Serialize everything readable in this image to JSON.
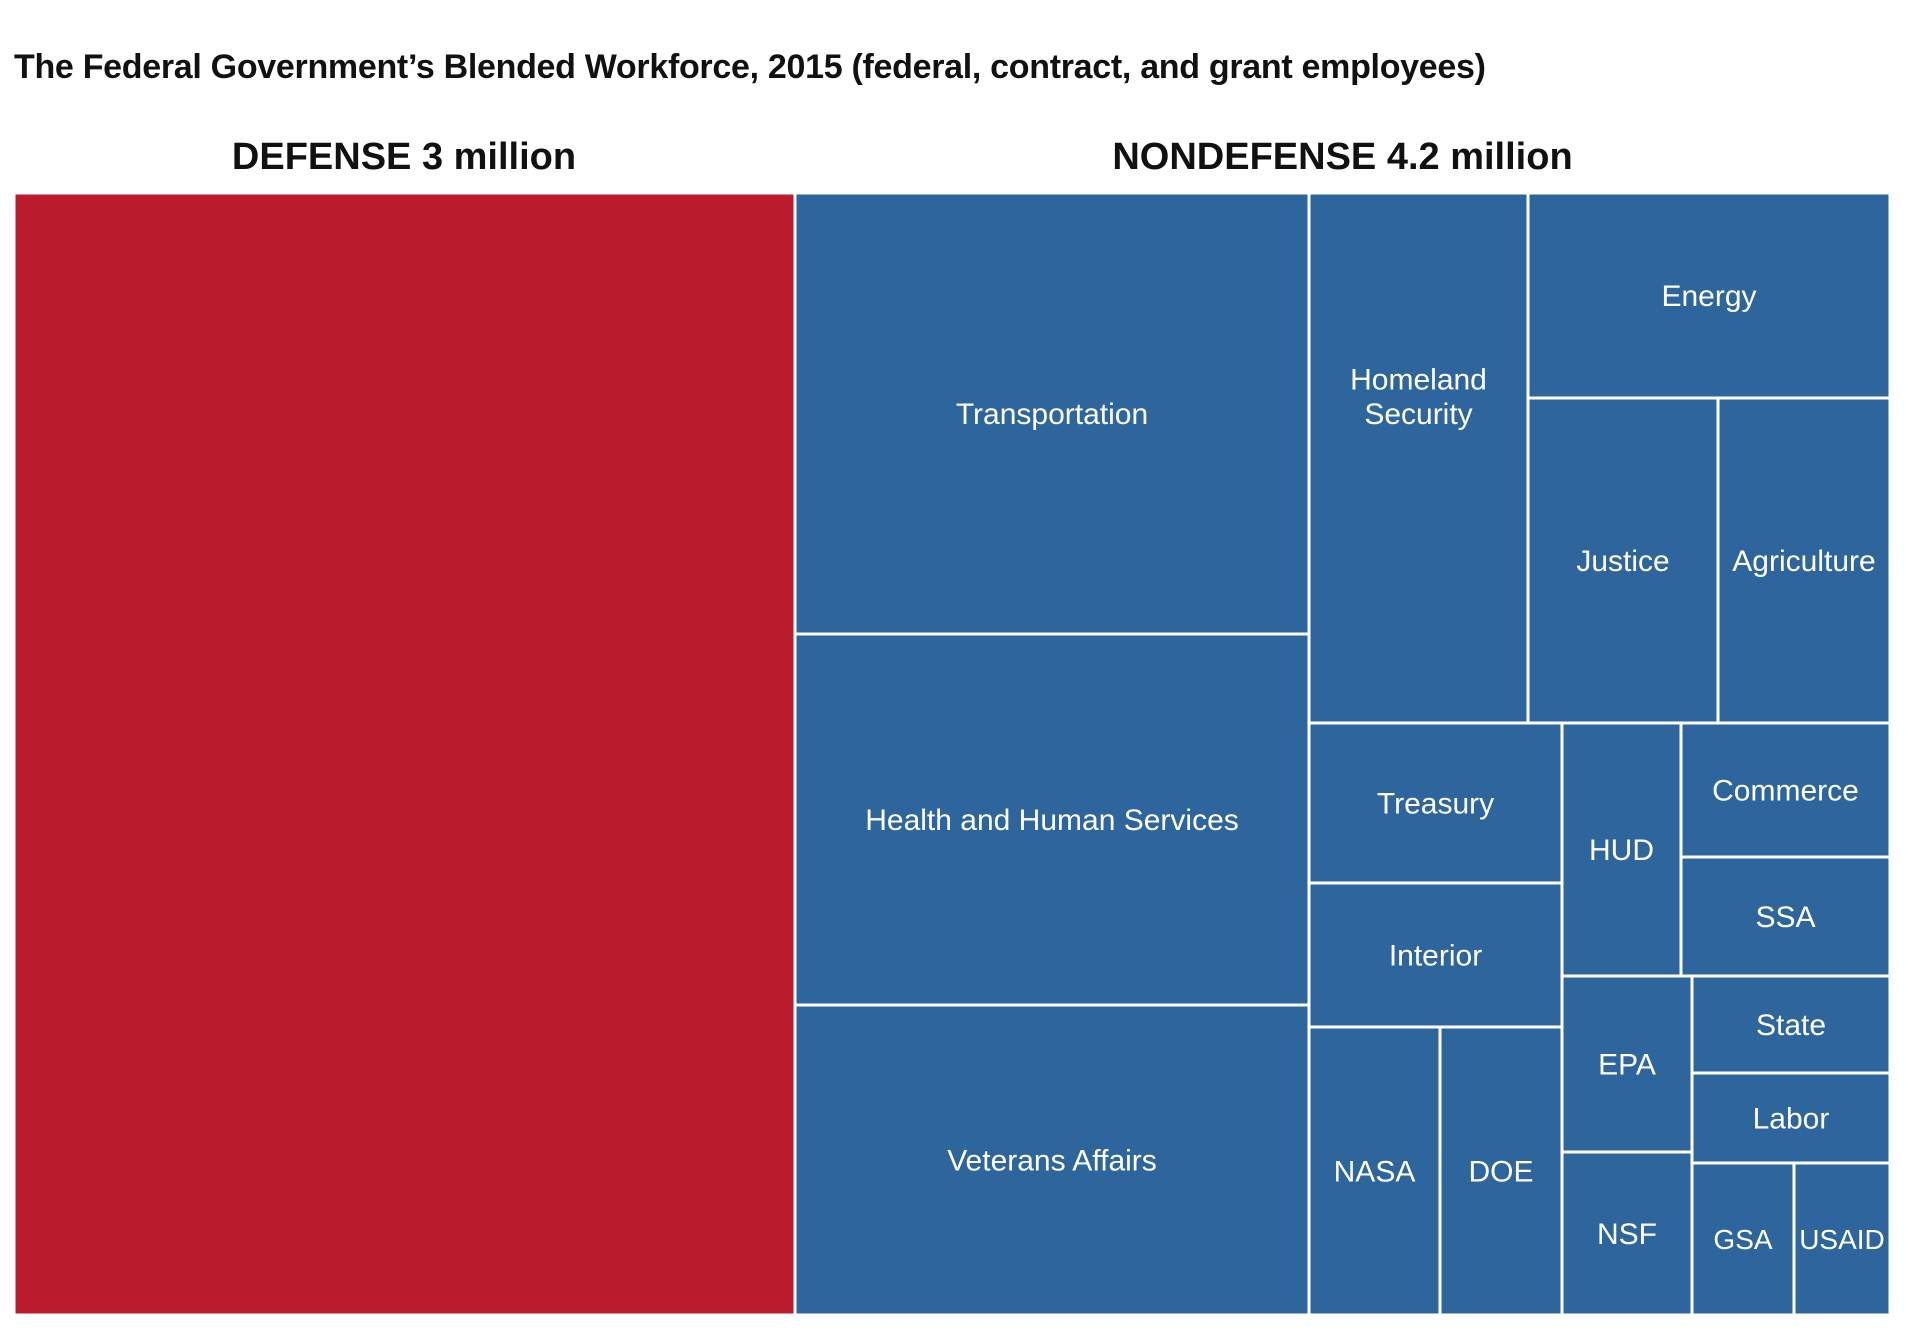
{
  "chart_data": {
    "type": "treemap",
    "title": "The Federal Government’s Blended Workforce, 2015 (federal, contract, and grant employees)",
    "groups": [
      {
        "name": "DEFENSE",
        "total_label": "3 million",
        "total_millions": 3.0,
        "color": "#BA1C2E",
        "children": []
      },
      {
        "name": "NONDEFENSE",
        "total_label": "4.2 million",
        "total_millions": 4.2,
        "color": "#2D659C",
        "children": [
          {
            "label": "Transportation"
          },
          {
            "label": "Health and Human Services"
          },
          {
            "label": "Veterans Affairs"
          },
          {
            "label": "Homeland Security"
          },
          {
            "label": "Energy"
          },
          {
            "label": "Justice"
          },
          {
            "label": "Agriculture"
          },
          {
            "label": "Treasury"
          },
          {
            "label": "Interior"
          },
          {
            "label": "HUD"
          },
          {
            "label": "Commerce"
          },
          {
            "label": "SSA"
          },
          {
            "label": "NASA"
          },
          {
            "label": "DOE"
          },
          {
            "label": "EPA"
          },
          {
            "label": "State"
          },
          {
            "label": "Labor"
          },
          {
            "label": "NSF"
          },
          {
            "label": "GSA"
          },
          {
            "label": "USAID"
          }
        ]
      }
    ],
    "colors": {
      "defense": "#BA1C2E",
      "nondefense": "#2D659C",
      "border": "#ffffff",
      "label_text": "#ffffff"
    }
  }
}
